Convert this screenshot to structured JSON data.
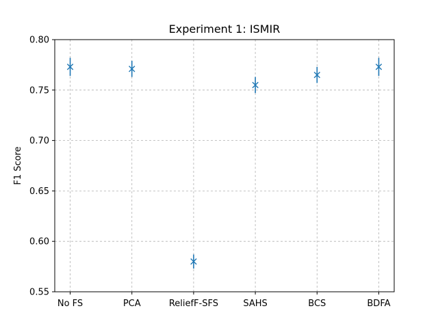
{
  "chart_data": {
    "type": "scatter",
    "title": "Experiment 1: ISMIR",
    "xlabel": "",
    "ylabel": "F1 Score",
    "categories": [
      "No FS",
      "PCA",
      "ReliefF-SFS",
      "SAHS",
      "BCS",
      "BDFA"
    ],
    "series": [
      {
        "values": [
          0.773,
          0.771,
          0.58,
          0.755,
          0.765,
          0.773
        ],
        "errors": [
          0.009,
          0.008,
          0.007,
          0.008,
          0.008,
          0.009
        ],
        "marker": "x",
        "color": "#1f77b4"
      }
    ],
    "ylim": [
      0.55,
      0.8
    ],
    "yticks": [
      "0.55",
      "0.60",
      "0.65",
      "0.70",
      "0.75",
      "0.80"
    ],
    "grid": true
  }
}
